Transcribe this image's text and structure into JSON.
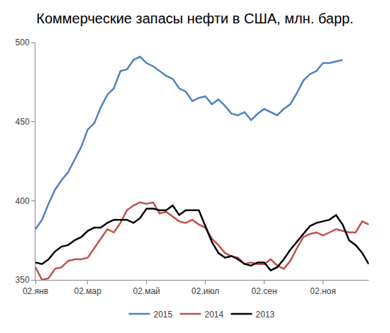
{
  "chart_data": {
    "type": "line",
    "title": "Коммерческие запасы нефти в США, млн. барр.",
    "categories": [
      "02.янв",
      null,
      null,
      null,
      null,
      null,
      null,
      null,
      "02.мар",
      null,
      null,
      null,
      null,
      null,
      null,
      null,
      null,
      "02.май",
      null,
      null,
      null,
      null,
      null,
      null,
      null,
      null,
      "02.июл",
      null,
      null,
      null,
      null,
      null,
      null,
      null,
      null,
      "02.сен",
      null,
      null,
      null,
      null,
      null,
      null,
      null,
      null,
      "02.ноя",
      null,
      null,
      null,
      null,
      null,
      null,
      null
    ],
    "series": [
      {
        "name": "2015",
        "color": "#4f81bd",
        "values": [
          382,
          388,
          398,
          407,
          413,
          418,
          426,
          434,
          445,
          449,
          459,
          467,
          471,
          482,
          483,
          489,
          491,
          487,
          485,
          482,
          479,
          477,
          471,
          469,
          463,
          465,
          466,
          461,
          464,
          460,
          455,
          454,
          456,
          451,
          455,
          458,
          456,
          454,
          458,
          461,
          468,
          476,
          480,
          482,
          487,
          487,
          488,
          489,
          null,
          null,
          null,
          null
        ]
      },
      {
        "name": "2014",
        "color": "#c0504d",
        "values": [
          358,
          350,
          351,
          357,
          358,
          362,
          363,
          363,
          364,
          370,
          376,
          382,
          380,
          386,
          394,
          397,
          399,
          398,
          399,
          392,
          393,
          390,
          387,
          386,
          388,
          385,
          383,
          376,
          372,
          367,
          365,
          364,
          360,
          361,
          360,
          360,
          363,
          359,
          357,
          362,
          370,
          377,
          379,
          380,
          378,
          380,
          382,
          381,
          380,
          380,
          387,
          385
        ]
      },
      {
        "name": "2013",
        "color": "#000000",
        "values": [
          361,
          360,
          363,
          368,
          371,
          372,
          375,
          377,
          381,
          383,
          383,
          386,
          388,
          388,
          388,
          386,
          389,
          395,
          395,
          394,
          394,
          397,
          391,
          394,
          394,
          394,
          384,
          374,
          367,
          364,
          365,
          363,
          360,
          359,
          361,
          361,
          356,
          358,
          363,
          369,
          374,
          379,
          384,
          386,
          387,
          388,
          391,
          385,
          375,
          372,
          367,
          360
        ]
      }
    ],
    "ylim": [
      350,
      500
    ],
    "yticks": [
      350,
      400,
      450,
      500
    ],
    "grid": false,
    "legend": "bottom"
  }
}
